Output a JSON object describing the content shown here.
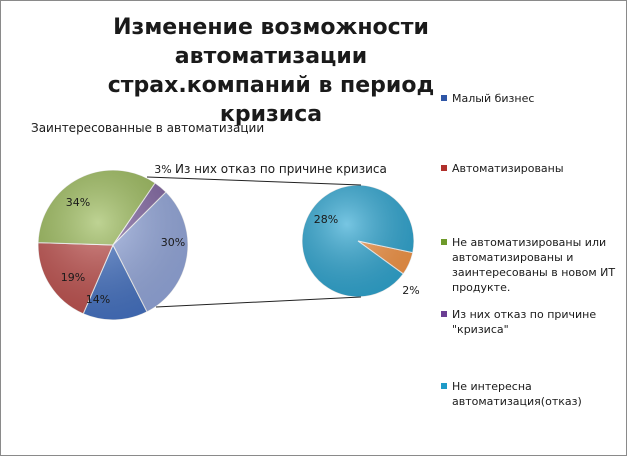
{
  "chart_data": {
    "type": "pie",
    "title_lines": [
      "Изменение возможности автоматизации",
      "страх.компаний  в период кризиса"
    ],
    "subtitle": "Заинтересованные в автоматизации",
    "main_pie": {
      "slices": [
        {
          "name": "Малый бизнес",
          "value": 14,
          "label": "14%",
          "color": "#4472C4"
        },
        {
          "name": "Автоматизированы",
          "value": 19,
          "label": "19%",
          "color": "#C0504D"
        },
        {
          "name": "Не автоматизированы или автоматизированы и заинтересованы в новом ИТ продукте.",
          "value": 34,
          "label": "34%",
          "color": "#9BBB59"
        },
        {
          "name": "Из них отказ по причине \"кризиса\"",
          "value": 3,
          "label": "3%",
          "color": "#8064A2"
        },
        {
          "name": "",
          "value": 30,
          "label": "30%",
          "color": "#95A9DE"
        }
      ],
      "callout": "Из них отказ по причине кризиса"
    },
    "secondary_pie": {
      "slices": [
        {
          "name": "Не интересна автоматизация(отказ)",
          "value": 28,
          "label": "28%",
          "color": "#2EA7D3"
        },
        {
          "name": "",
          "value": 2,
          "label": "2%",
          "color": "#F79646"
        }
      ]
    },
    "legend": [
      {
        "label": "Малый бизнес",
        "color": "#2F56A6"
      },
      {
        "label": "Автоматизированы",
        "color": "#B0302C"
      },
      {
        "label": "Не автоматизированы  или автоматизированы и заинтересованы в новом ИТ продукте.",
        "color": "#6E9A2A"
      },
      {
        "label": "Из них отказ  по причине \"кризиса\"",
        "color": "#6B3E93"
      },
      {
        "label": "Не интересна автоматизация(отказ)",
        "color": "#1E9BC8"
      }
    ],
    "legend_position": "right"
  }
}
